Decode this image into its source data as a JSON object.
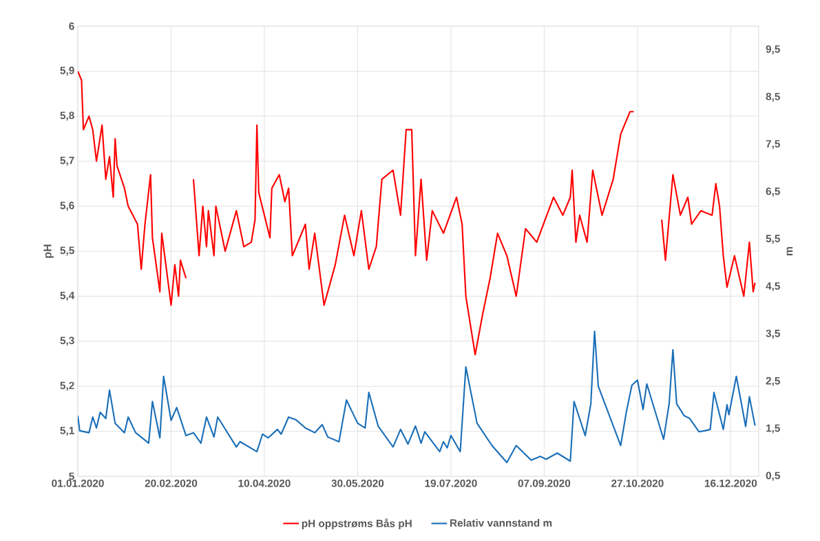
{
  "chart_data": {
    "type": "line",
    "ylabel": "pH",
    "y2label": "m",
    "grid": true,
    "legend": "bottom",
    "xlim": [
      "2020-01-01",
      "2020-12-31"
    ],
    "xticks": [
      {
        "value": "2020-01-01",
        "label": "01.01.2020"
      },
      {
        "value": "2020-02-20",
        "label": "20.02.2020"
      },
      {
        "value": "2020-04-10",
        "label": "10.04.2020"
      },
      {
        "value": "2020-05-30",
        "label": "30.05.2020"
      },
      {
        "value": "2020-07-19",
        "label": "19.07.2020"
      },
      {
        "value": "2020-09-07",
        "label": "07.09.2020"
      },
      {
        "value": "2020-10-27",
        "label": "27.10.2020"
      },
      {
        "value": "2020-12-16",
        "label": "16.12.2020"
      }
    ],
    "ylim": [
      5,
      6
    ],
    "yticks": [
      5,
      {
        "value": 5.1,
        "label": "5,1"
      },
      {
        "value": 5.2,
        "label": "5,2"
      },
      {
        "value": 5.3,
        "label": "5,3"
      },
      {
        "value": 5.4,
        "label": "5,4"
      },
      {
        "value": 5.5,
        "label": "5,5"
      },
      {
        "value": 5.6,
        "label": "5,6"
      },
      {
        "value": 5.7,
        "label": "5,7"
      },
      {
        "value": 5.8,
        "label": "5,8"
      },
      {
        "value": 5.9,
        "label": "5,9"
      },
      6
    ],
    "y2lim": [
      0.5,
      10
    ],
    "y2ticks": [
      {
        "value": 0.5,
        "label": "0,5"
      },
      {
        "value": 1.5,
        "label": "1,5"
      },
      {
        "value": 2.5,
        "label": "2,5"
      },
      {
        "value": 3.5,
        "label": "3,5"
      },
      {
        "value": 4.5,
        "label": "4,5"
      },
      {
        "value": 5.5,
        "label": "5,5"
      },
      {
        "value": 6.5,
        "label": "6,5"
      },
      {
        "value": 7.5,
        "label": "7,5"
      },
      {
        "value": 8.5,
        "label": "8,5"
      },
      {
        "value": 9.5,
        "label": "9,5"
      }
    ],
    "series": [
      {
        "name": "pH oppstrøms Bås pH",
        "color": "#ff0000",
        "x": [
          "2020-01-01",
          "2020-01-03",
          "2020-01-04",
          "2020-01-07",
          "2020-01-09",
          "2020-01-11",
          "2020-01-14",
          "2020-01-16",
          "2020-01-18",
          "2020-01-20",
          "2020-01-21",
          "2020-01-22",
          "2020-01-26",
          "2020-01-28",
          "2020-02-02",
          "2020-02-04",
          "2020-02-06",
          "2020-02-09",
          "2020-02-10",
          "2020-02-14",
          "2020-02-15",
          "2020-02-20",
          "2020-02-22",
          "2020-02-24",
          "2020-02-25",
          "2020-02-28",
          "2020-03-01",
          "2020-03-03",
          "2020-03-06",
          "2020-03-08",
          "2020-03-10",
          "2020-03-11",
          "2020-03-14",
          "2020-03-15",
          "2020-03-20",
          "2020-03-26",
          "2020-03-30",
          "2020-04-03",
          "2020-04-05",
          "2020-04-06",
          "2020-04-07",
          "2020-04-10",
          "2020-04-13",
          "2020-04-14",
          "2020-04-18",
          "2020-04-21",
          "2020-04-23",
          "2020-04-25",
          "2020-05-02",
          "2020-05-04",
          "2020-05-07",
          "2020-05-12",
          "2020-05-18",
          "2020-05-23",
          "2020-05-28",
          "2020-06-01",
          "2020-06-05",
          "2020-06-09",
          "2020-06-12",
          "2020-06-18",
          "2020-06-22",
          "2020-06-25",
          "2020-06-28",
          "2020-06-30",
          "2020-07-03",
          "2020-07-06",
          "2020-07-09",
          "2020-07-15",
          "2020-07-22",
          "2020-07-25",
          "2020-07-27",
          "2020-08-01",
          "2020-08-05",
          "2020-08-09",
          "2020-08-13",
          "2020-08-18",
          "2020-08-23",
          "2020-08-28",
          "2020-09-03",
          "2020-09-12",
          "2020-09-17",
          "2020-09-21",
          "2020-09-22",
          "2020-09-24",
          "2020-09-26",
          "2020-09-30",
          "2020-10-03",
          "2020-10-08",
          "2020-10-14",
          "2020-10-18",
          "2020-10-23",
          "2020-10-25",
          "2020-11-01",
          "2020-11-09",
          "2020-11-11",
          "2020-11-15",
          "2020-11-19",
          "2020-11-23",
          "2020-11-25",
          "2020-11-30",
          "2020-12-06",
          "2020-12-08",
          "2020-12-10",
          "2020-12-12",
          "2020-12-14",
          "2020-12-18",
          "2020-12-23",
          "2020-12-26",
          "2020-12-28",
          "2020-12-29"
        ],
        "values": [
          5.9,
          5.88,
          5.77,
          5.8,
          5.77,
          5.7,
          5.78,
          5.66,
          5.71,
          5.62,
          5.75,
          5.69,
          5.64,
          5.6,
          5.56,
          5.46,
          5.56,
          5.67,
          5.53,
          5.41,
          5.54,
          5.38,
          5.47,
          5.4,
          5.48,
          5.44,
          null,
          5.66,
          5.49,
          5.6,
          5.51,
          5.59,
          5.49,
          5.6,
          5.5,
          5.59,
          5.51,
          5.52,
          5.57,
          5.78,
          5.63,
          5.58,
          5.53,
          5.64,
          5.67,
          5.61,
          5.64,
          5.49,
          5.56,
          5.46,
          5.54,
          5.38,
          5.47,
          5.58,
          5.49,
          5.59,
          5.46,
          5.51,
          5.66,
          5.68,
          5.58,
          5.77,
          5.77,
          5.49,
          5.66,
          5.48,
          5.59,
          5.54,
          5.62,
          5.56,
          5.4,
          5.27,
          5.36,
          5.44,
          5.54,
          5.49,
          5.4,
          5.55,
          5.52,
          5.62,
          5.58,
          5.62,
          5.68,
          5.52,
          5.58,
          5.52,
          5.68,
          5.58,
          5.66,
          5.76,
          5.81,
          5.81,
          null,
          5.57,
          5.48,
          5.67,
          5.58,
          5.62,
          5.56,
          5.59,
          5.58,
          5.65,
          5.6,
          5.49,
          5.42,
          5.49,
          5.4,
          5.52,
          5.41,
          5.43
        ]
      },
      {
        "name": "Relativ vannstand m",
        "color": "#1a6fb8",
        "axis": "y2",
        "x": [
          "2020-01-01",
          "2020-01-02",
          "2020-01-07",
          "2020-01-09",
          "2020-01-11",
          "2020-01-13",
          "2020-01-16",
          "2020-01-18",
          "2020-01-21",
          "2020-01-26",
          "2020-01-28",
          "2020-02-01",
          "2020-02-08",
          "2020-02-10",
          "2020-02-14",
          "2020-02-16",
          "2020-02-20",
          "2020-02-23",
          "2020-02-28",
          "2020-03-03",
          "2020-03-07",
          "2020-03-10",
          "2020-03-14",
          "2020-03-16",
          "2020-03-26",
          "2020-03-28",
          "2020-04-06",
          "2020-04-09",
          "2020-04-12",
          "2020-04-17",
          "2020-04-19",
          "2020-04-23",
          "2020-04-27",
          "2020-05-02",
          "2020-05-07",
          "2020-05-11",
          "2020-05-14",
          "2020-05-20",
          "2020-05-24",
          "2020-05-30",
          "2020-06-03",
          "2020-06-05",
          "2020-06-10",
          "2020-06-18",
          "2020-06-22",
          "2020-06-26",
          "2020-06-30",
          "2020-07-03",
          "2020-07-05",
          "2020-07-13",
          "2020-07-15",
          "2020-07-17",
          "2020-07-19",
          "2020-07-24",
          "2020-07-27",
          "2020-08-02",
          "2020-08-10",
          "2020-08-18",
          "2020-08-23",
          "2020-08-31",
          "2020-09-05",
          "2020-09-08",
          "2020-09-14",
          "2020-09-21",
          "2020-09-23",
          "2020-09-29",
          "2020-10-02",
          "2020-10-04",
          "2020-10-06",
          "2020-10-18",
          "2020-10-21",
          "2020-10-24",
          "2020-10-27",
          "2020-10-30",
          "2020-11-01",
          "2020-11-10",
          "2020-11-13",
          "2020-11-15",
          "2020-11-17",
          "2020-11-21",
          "2020-11-24",
          "2020-11-29",
          "2020-12-02",
          "2020-12-05",
          "2020-12-07",
          "2020-12-12",
          "2020-12-14",
          "2020-12-15",
          "2020-12-19",
          "2020-12-24",
          "2020-12-26",
          "2020-12-29"
        ],
        "values": [
          1.78,
          1.46,
          1.42,
          1.75,
          1.52,
          1.85,
          1.72,
          2.32,
          1.62,
          1.42,
          1.75,
          1.42,
          1.2,
          2.08,
          1.31,
          2.61,
          1.68,
          1.95,
          1.36,
          1.42,
          1.2,
          1.75,
          1.33,
          1.75,
          1.12,
          1.23,
          1.02,
          1.39,
          1.31,
          1.49,
          1.39,
          1.75,
          1.69,
          1.52,
          1.42,
          1.59,
          1.33,
          1.23,
          2.11,
          1.62,
          1.52,
          2.27,
          1.56,
          1.12,
          1.49,
          1.18,
          1.56,
          1.2,
          1.44,
          1.02,
          1.23,
          1.1,
          1.36,
          1.02,
          2.81,
          1.62,
          1.15,
          0.79,
          1.15,
          0.84,
          0.92,
          0.86,
          0.99,
          0.82,
          2.08,
          1.36,
          2.03,
          3.56,
          2.4,
          1.15,
          1.85,
          2.42,
          2.53,
          1.91,
          2.45,
          1.28,
          2.04,
          3.17,
          2.03,
          1.78,
          1.72,
          1.44,
          1.46,
          1.49,
          2.27,
          1.49,
          2.01,
          1.8,
          2.61,
          1.55,
          2.18,
          1.57
        ]
      }
    ]
  }
}
